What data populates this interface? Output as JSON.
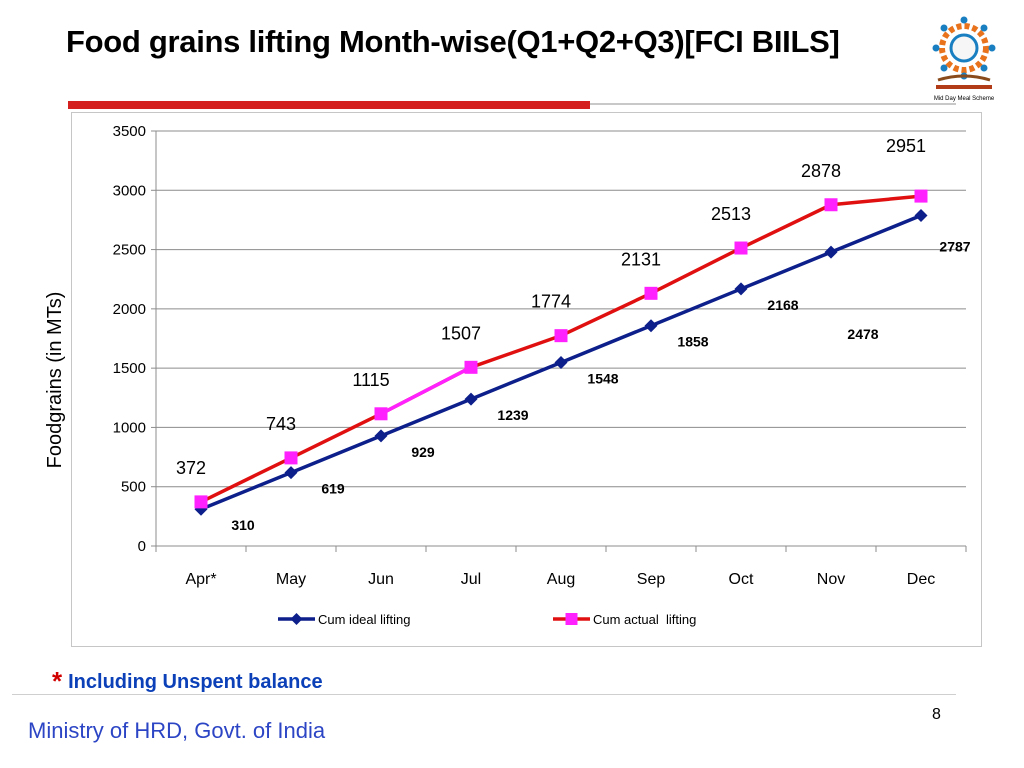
{
  "slide": {
    "title": "Food grains lifting Month-wise(Q1+Q2+Q3)[FCI BIILS]",
    "footnote_star": "*",
    "footnote_text": "Including Unspent balance",
    "organization": "Ministry of HRD, Govt. of India",
    "page_number": "8",
    "logo": {
      "icon": "mid-day-meal-scheme-logo-icon",
      "caption": "Mid Day Meal Scheme"
    }
  },
  "chart_data": {
    "type": "line",
    "title": "",
    "xlabel": "",
    "ylabel": "Foodgrains (in MTs)",
    "ylim": [
      0,
      3500
    ],
    "yticks": [
      0,
      500,
      1000,
      1500,
      2000,
      2500,
      3000,
      3500
    ],
    "categories": [
      "Apr*",
      "May",
      "Jun",
      "Jul",
      "Aug",
      "Sep",
      "Oct",
      "Nov",
      "Dec"
    ],
    "grid": true,
    "legend_position": "bottom",
    "series": [
      {
        "name": "Cum ideal lifting",
        "values": [
          310,
          619,
          929,
          1239,
          1548,
          1858,
          2168,
          2478,
          2787
        ],
        "labels": [
          "310",
          "619",
          "929",
          "1239",
          "1548",
          "1858",
          "2168",
          "2478",
          "2787"
        ],
        "line_color": "#0d1f8a",
        "marker_color": "#0d1f8a",
        "marker": "diamond"
      },
      {
        "name": "Cum actual  lifting",
        "values": [
          372,
          743,
          1115,
          1507,
          1774,
          2131,
          2513,
          2878,
          2951
        ],
        "labels": [
          "372",
          "743",
          "1115",
          "1507",
          "1774",
          "2131",
          "2513",
          "2878",
          "2951"
        ],
        "line_color": "#e01010",
        "line_color_highlight": "#ff22ff",
        "marker_color": "#ff22ff",
        "marker": "square"
      }
    ]
  }
}
